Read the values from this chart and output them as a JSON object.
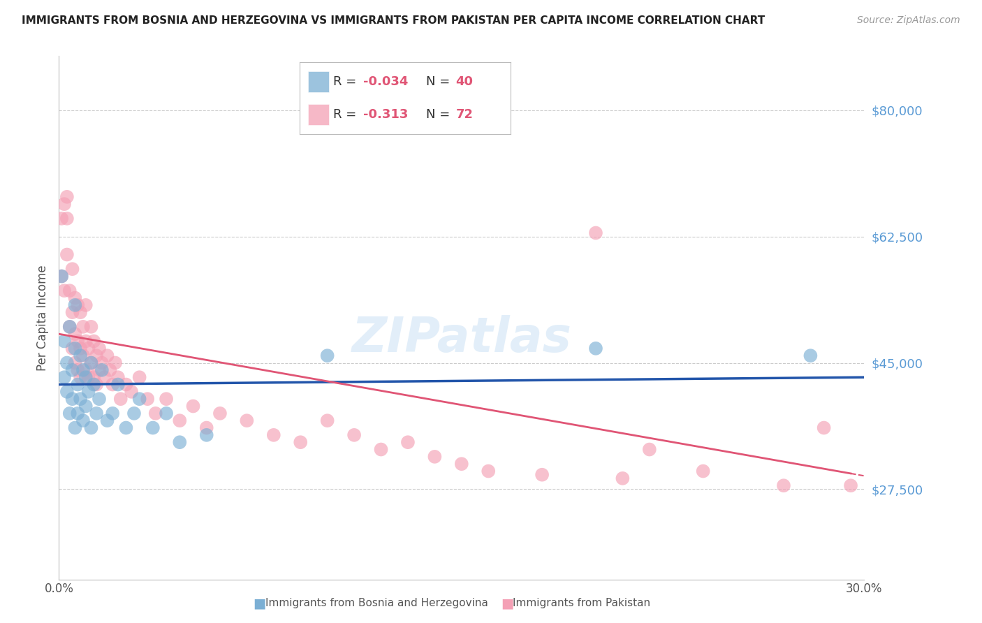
{
  "title": "IMMIGRANTS FROM BOSNIA AND HERZEGOVINA VS IMMIGRANTS FROM PAKISTAN PER CAPITA INCOME CORRELATION CHART",
  "source": "Source: ZipAtlas.com",
  "ylabel": "Per Capita Income",
  "ymin": 15000,
  "ymax": 87500,
  "xmin": 0.0,
  "xmax": 0.3,
  "background_color": "#ffffff",
  "grid_color": "#cccccc",
  "color_bosnia": "#7bafd4",
  "color_pakistan": "#f4a0b5",
  "line_color_bosnia": "#2255aa",
  "line_color_pakistan": "#e05575",
  "bosnia_R": -0.034,
  "bosnia_N": 40,
  "pakistan_R": -0.313,
  "pakistan_N": 72,
  "bosnia_x": [
    0.001,
    0.002,
    0.002,
    0.003,
    0.003,
    0.004,
    0.004,
    0.005,
    0.005,
    0.006,
    0.006,
    0.006,
    0.007,
    0.007,
    0.008,
    0.008,
    0.009,
    0.009,
    0.01,
    0.01,
    0.011,
    0.012,
    0.012,
    0.013,
    0.014,
    0.015,
    0.016,
    0.018,
    0.02,
    0.022,
    0.025,
    0.028,
    0.03,
    0.035,
    0.04,
    0.045,
    0.055,
    0.1,
    0.2,
    0.28
  ],
  "bosnia_y": [
    57000,
    43000,
    48000,
    45000,
    41000,
    50000,
    38000,
    44000,
    40000,
    53000,
    47000,
    36000,
    42000,
    38000,
    46000,
    40000,
    44000,
    37000,
    43000,
    39000,
    41000,
    45000,
    36000,
    42000,
    38000,
    40000,
    44000,
    37000,
    38000,
    42000,
    36000,
    38000,
    40000,
    36000,
    38000,
    34000,
    35000,
    46000,
    47000,
    46000
  ],
  "pakistan_x": [
    0.001,
    0.001,
    0.002,
    0.002,
    0.003,
    0.003,
    0.003,
    0.004,
    0.004,
    0.005,
    0.005,
    0.005,
    0.006,
    0.006,
    0.006,
    0.007,
    0.007,
    0.007,
    0.008,
    0.008,
    0.008,
    0.009,
    0.009,
    0.01,
    0.01,
    0.01,
    0.011,
    0.011,
    0.012,
    0.012,
    0.013,
    0.013,
    0.014,
    0.014,
    0.015,
    0.015,
    0.016,
    0.017,
    0.018,
    0.019,
    0.02,
    0.021,
    0.022,
    0.023,
    0.025,
    0.027,
    0.03,
    0.033,
    0.036,
    0.04,
    0.045,
    0.05,
    0.055,
    0.06,
    0.07,
    0.08,
    0.09,
    0.1,
    0.11,
    0.12,
    0.13,
    0.14,
    0.15,
    0.16,
    0.18,
    0.2,
    0.21,
    0.22,
    0.24,
    0.27,
    0.285,
    0.295
  ],
  "pakistan_y": [
    57000,
    65000,
    55000,
    67000,
    65000,
    68000,
    60000,
    55000,
    50000,
    52000,
    47000,
    58000,
    54000,
    49000,
    45000,
    53000,
    48000,
    44000,
    52000,
    47000,
    43000,
    50000,
    46000,
    48000,
    44000,
    53000,
    47000,
    43000,
    50000,
    45000,
    48000,
    43000,
    46000,
    42000,
    47000,
    44000,
    45000,
    43000,
    46000,
    44000,
    42000,
    45000,
    43000,
    40000,
    42000,
    41000,
    43000,
    40000,
    38000,
    40000,
    37000,
    39000,
    36000,
    38000,
    37000,
    35000,
    34000,
    37000,
    35000,
    33000,
    34000,
    32000,
    31000,
    30000,
    29500,
    63000,
    29000,
    33000,
    30000,
    28000,
    36000,
    28000
  ]
}
